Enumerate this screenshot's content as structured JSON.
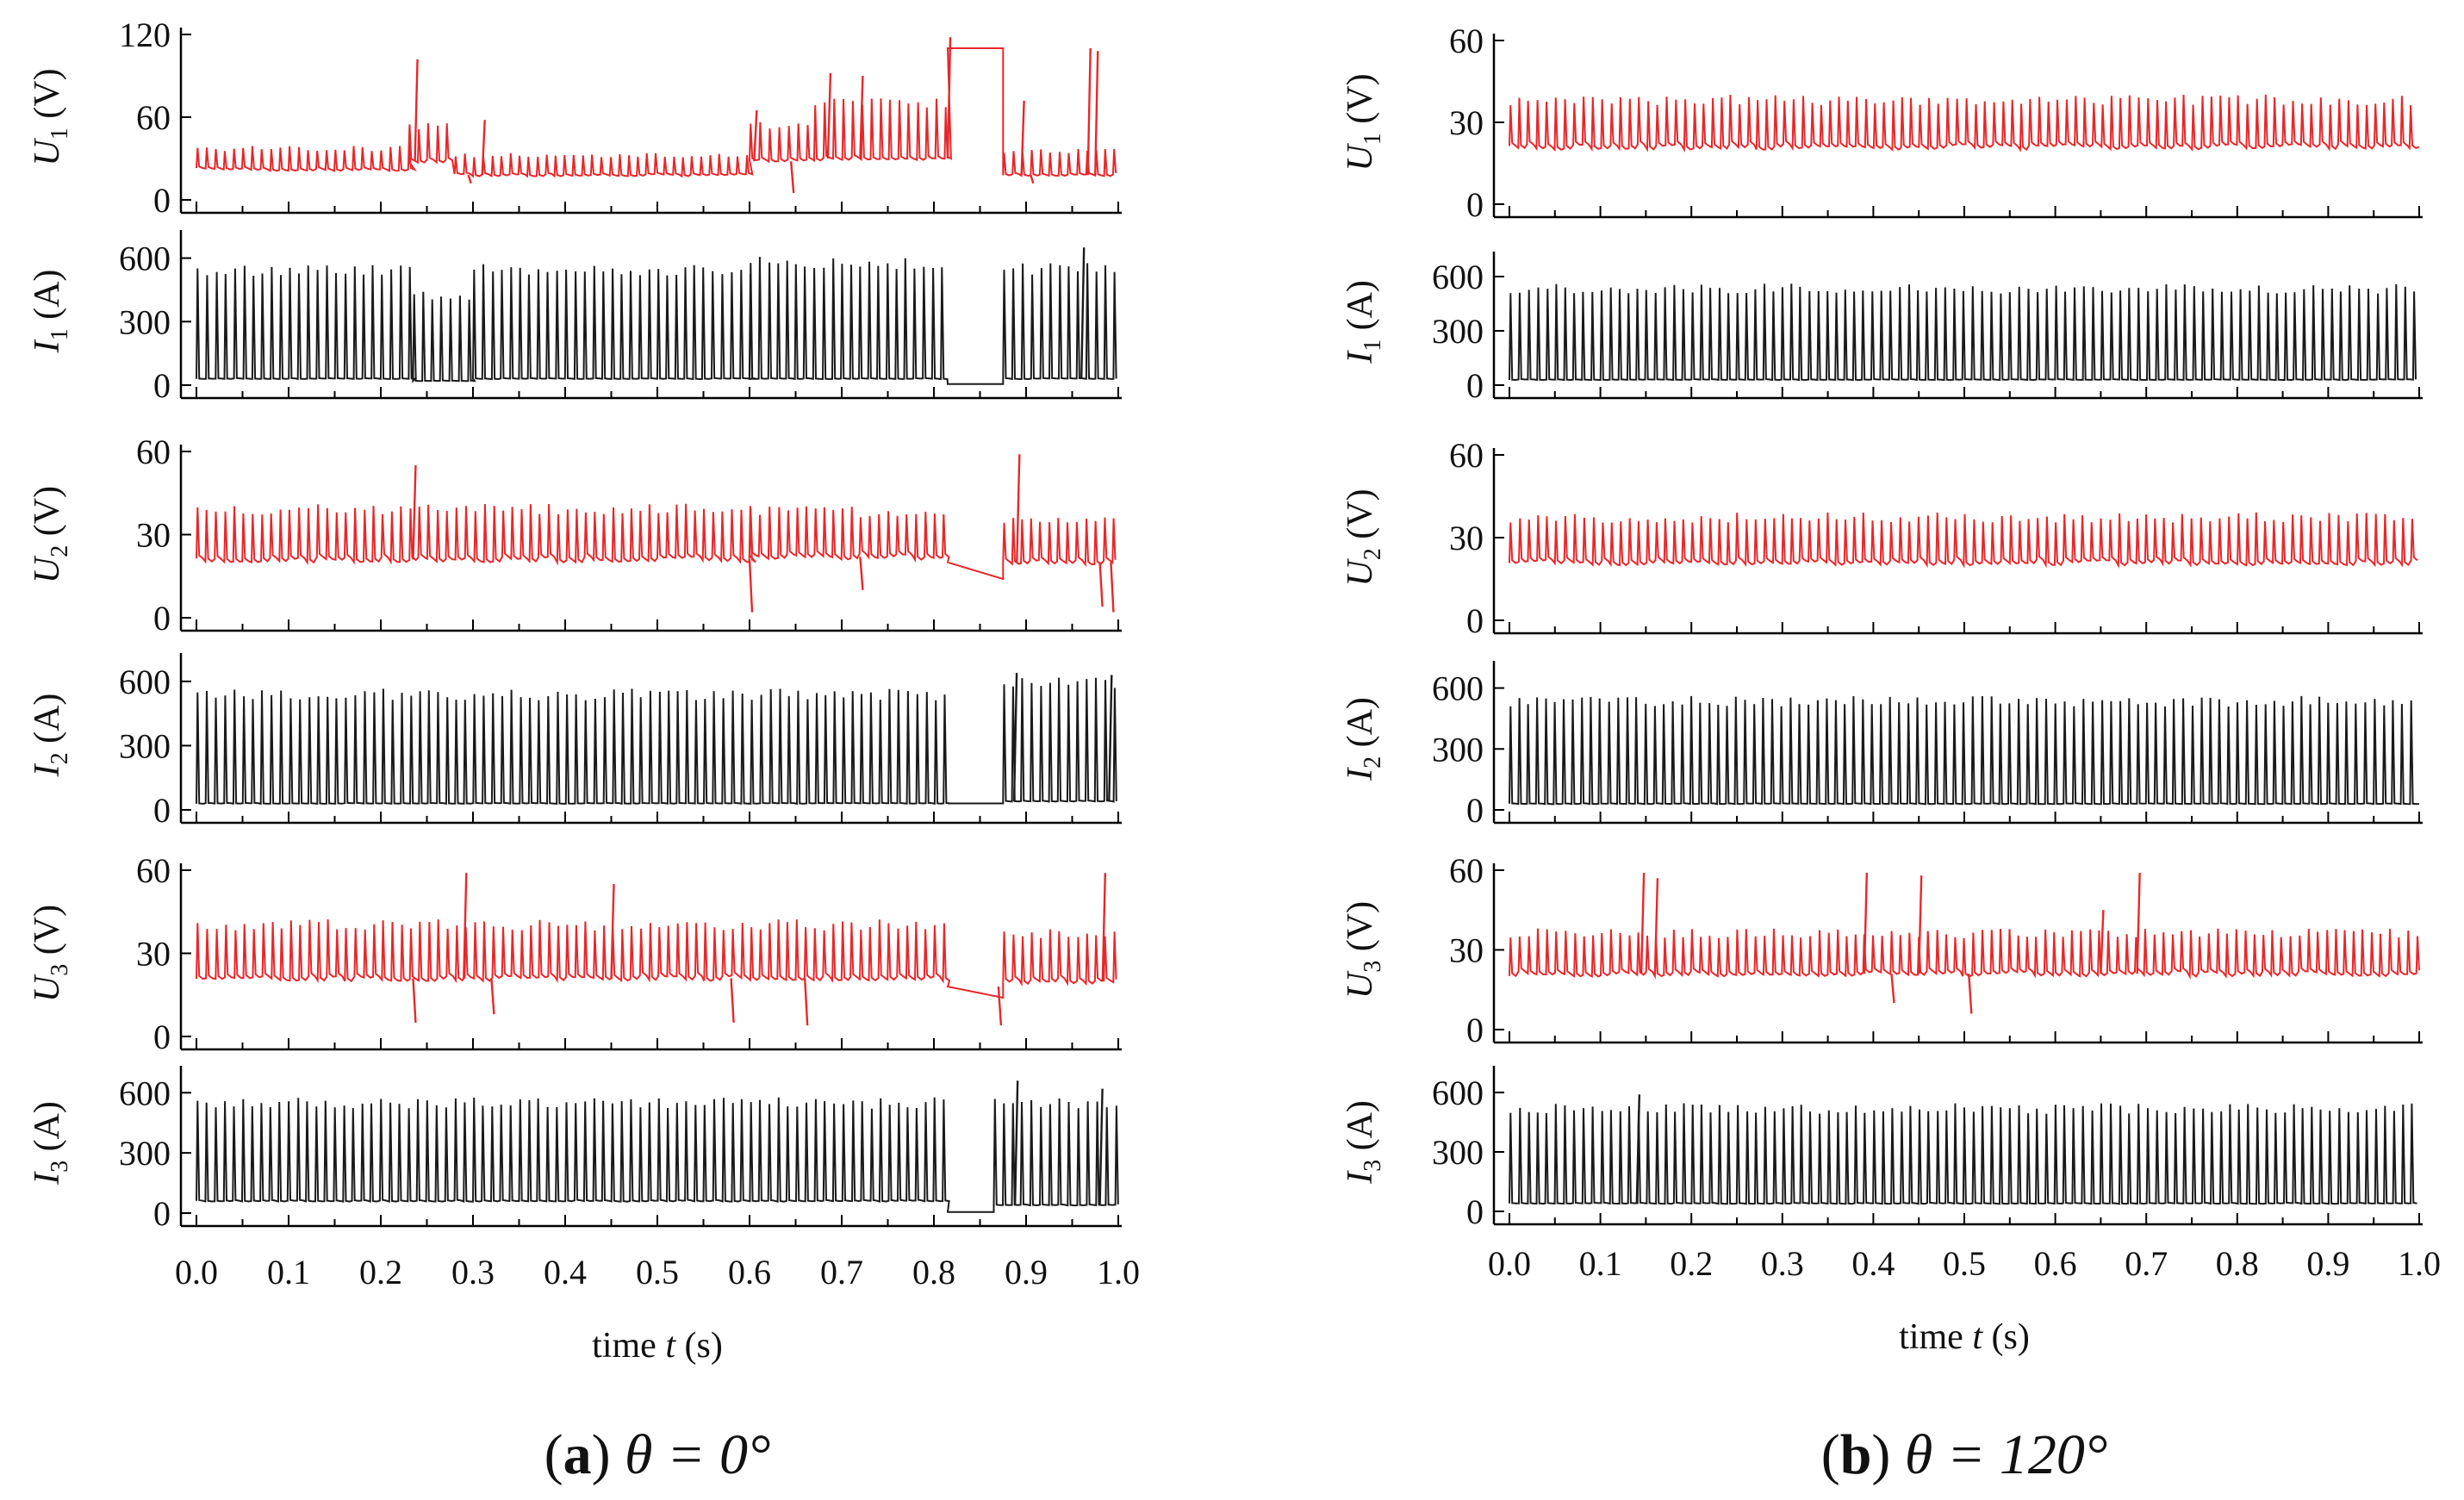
{
  "colors": {
    "voltage": "#e8272b",
    "current": "#1a1a1a",
    "axis": "#000000",
    "text": "#111111"
  },
  "chart_data": [
    {
      "panel": "a",
      "caption": {
        "letter": "a",
        "text": "θ = 0°"
      },
      "type": "line",
      "xlabel": "time t (s)",
      "xlim": [
        0.0,
        1.0
      ],
      "xticks": [
        "0.0",
        "0.1",
        "0.2",
        "0.3",
        "0.4",
        "0.5",
        "0.6",
        "0.7",
        "0.8",
        "0.9",
        "1.0"
      ],
      "series": [
        {
          "name": "U1",
          "label": "U",
          "sub": "1",
          "unit": " (V)",
          "kind": "voltage",
          "ylim": [
            0,
            120
          ],
          "yticks": [
            0,
            60,
            120
          ],
          "base": 22,
          "peak": 38,
          "freq": 90,
          "segments": [
            {
              "t0": 0.0,
              "t1": 0.23,
              "base": 22,
              "peak": 38
            },
            {
              "t0": 0.23,
              "t1": 0.28,
              "base": 28,
              "peak": 55
            },
            {
              "t0": 0.28,
              "t1": 0.6,
              "base": 18,
              "peak": 33
            },
            {
              "t0": 0.6,
              "t1": 0.67,
              "base": 28,
              "peak": 55
            },
            {
              "t0": 0.67,
              "t1": 0.815,
              "base": 30,
              "peak": 72
            },
            {
              "t0": 0.815,
              "t1": 0.875,
              "base": 110,
              "peak": 110,
              "flat": true
            },
            {
              "t0": 0.875,
              "t1": 1.0,
              "base": 18,
              "peak": 36
            }
          ],
          "spikes": [
            {
              "t": 0.237,
              "v": 102
            },
            {
              "t": 0.295,
              "v": 12
            },
            {
              "t": 0.31,
              "v": 58
            },
            {
              "t": 0.605,
              "v": 65
            },
            {
              "t": 0.645,
              "v": 5
            },
            {
              "t": 0.685,
              "v": 92
            },
            {
              "t": 0.72,
              "v": 90
            },
            {
              "t": 0.815,
              "v": 118
            },
            {
              "t": 0.895,
              "v": 72
            },
            {
              "t": 0.905,
              "v": 12
            },
            {
              "t": 0.967,
              "v": 110
            },
            {
              "t": 0.975,
              "v": 108
            }
          ]
        },
        {
          "name": "I1",
          "label": "I",
          "sub": "1",
          "unit": " (A)",
          "kind": "current",
          "ylim": [
            0,
            700
          ],
          "yticks": [
            0,
            300,
            600
          ],
          "segments": [
            {
              "t0": 0.0,
              "t1": 0.235,
              "base": 30,
              "peak": 555
            },
            {
              "t0": 0.235,
              "t1": 0.3,
              "base": 20,
              "peak": 430
            },
            {
              "t0": 0.3,
              "t1": 0.6,
              "base": 30,
              "peak": 555
            },
            {
              "t0": 0.6,
              "t1": 0.815,
              "base": 30,
              "peak": 590
            },
            {
              "t0": 0.815,
              "t1": 0.875,
              "base": 5,
              "peak": 5,
              "flat": true
            },
            {
              "t0": 0.875,
              "t1": 1.0,
              "base": 30,
              "peak": 560
            }
          ],
          "spikes": [
            {
              "t": 0.96,
              "v": 650
            }
          ]
        },
        {
          "name": "U2",
          "label": "U",
          "sub": "2",
          "unit": " (V)",
          "kind": "voltage",
          "ylim": [
            0,
            60
          ],
          "yticks": [
            0,
            30,
            60
          ],
          "segments": [
            {
              "t0": 0.0,
              "t1": 0.6,
              "base": 21,
              "peak": 40
            },
            {
              "t0": 0.6,
              "t1": 0.815,
              "base": 22,
              "peak": 39
            },
            {
              "t0": 0.815,
              "t1": 0.875,
              "base": 20,
              "peak": 20,
              "flat": true,
              "flatEnd": 14
            },
            {
              "t0": 0.875,
              "t1": 1.0,
              "base": 20,
              "peak": 36
            }
          ],
          "spikes": [
            {
              "t": 0.235,
              "v": 55
            },
            {
              "t": 0.6,
              "v": 2
            },
            {
              "t": 0.72,
              "v": 10
            },
            {
              "t": 0.89,
              "v": 59
            },
            {
              "t": 0.98,
              "v": 4
            },
            {
              "t": 0.992,
              "v": 2
            }
          ]
        },
        {
          "name": "I2",
          "label": "I",
          "sub": "2",
          "unit": " (A)",
          "kind": "current",
          "ylim": [
            0,
            700
          ],
          "yticks": [
            0,
            300,
            600
          ],
          "segments": [
            {
              "t0": 0.0,
              "t1": 0.815,
              "base": 30,
              "peak": 550
            },
            {
              "t0": 0.815,
              "t1": 0.875,
              "base": 30,
              "peak": 30,
              "flat": true
            },
            {
              "t0": 0.875,
              "t1": 1.0,
              "base": 40,
              "peak": 600
            }
          ],
          "spikes": [
            {
              "t": 0.887,
              "v": 640
            },
            {
              "t": 0.99,
              "v": 630
            }
          ]
        },
        {
          "name": "U3",
          "label": "U",
          "sub": "3",
          "unit": " (V)",
          "kind": "voltage",
          "ylim": [
            0,
            60
          ],
          "yticks": [
            0,
            30,
            60
          ],
          "segments": [
            {
              "t0": 0.0,
              "t1": 0.815,
              "base": 21,
              "peak": 41
            },
            {
              "t0": 0.815,
              "t1": 0.875,
              "base": 18,
              "peak": 18,
              "flat": true,
              "flatEnd": 14
            },
            {
              "t0": 0.875,
              "t1": 1.0,
              "base": 20,
              "peak": 38
            }
          ],
          "spikes": [
            {
              "t": 0.29,
              "v": 59
            },
            {
              "t": 0.45,
              "v": 55
            },
            {
              "t": 0.235,
              "v": 5
            },
            {
              "t": 0.32,
              "v": 8
            },
            {
              "t": 0.58,
              "v": 5
            },
            {
              "t": 0.66,
              "v": 4
            },
            {
              "t": 0.87,
              "v": 4
            },
            {
              "t": 0.983,
              "v": 59
            }
          ]
        },
        {
          "name": "I3",
          "label": "I",
          "sub": "3",
          "unit": " (A)",
          "kind": "current",
          "ylim": [
            0,
            700
          ],
          "yticks": [
            0,
            300,
            600
          ],
          "segments": [
            {
              "t0": 0.0,
              "t1": 0.815,
              "base": 60,
              "peak": 560
            },
            {
              "t0": 0.815,
              "t1": 0.865,
              "base": 5,
              "peak": 5,
              "flat": true
            },
            {
              "t0": 0.865,
              "t1": 1.0,
              "base": 40,
              "peak": 560
            }
          ],
          "spikes": [
            {
              "t": 0.888,
              "v": 660
            },
            {
              "t": 0.98,
              "v": 620
            }
          ]
        }
      ]
    },
    {
      "panel": "b",
      "caption": {
        "letter": "b",
        "text": "θ = 120°"
      },
      "type": "line",
      "xlabel": "time t (s)",
      "xlim": [
        0.0,
        1.0
      ],
      "xticks": [
        "0.0",
        "0.1",
        "0.2",
        "0.3",
        "0.4",
        "0.5",
        "0.6",
        "0.7",
        "0.8",
        "0.9",
        "1.0"
      ],
      "series": [
        {
          "name": "U1",
          "label": "U",
          "sub": "1",
          "unit": " (V)",
          "kind": "voltage",
          "ylim": [
            0,
            60
          ],
          "yticks": [
            0,
            30,
            60
          ],
          "segments": [
            {
              "t0": 0.0,
              "t1": 1.0,
              "base": 21,
              "peak": 39
            }
          ],
          "spikes": []
        },
        {
          "name": "I1",
          "label": "I",
          "sub": "1",
          "unit": " (A)",
          "kind": "current",
          "ylim": [
            0,
            700
          ],
          "yticks": [
            0,
            300,
            600
          ],
          "segments": [
            {
              "t0": 0.0,
              "t1": 1.0,
              "base": 30,
              "peak": 545
            }
          ],
          "spikes": []
        },
        {
          "name": "U2",
          "label": "U",
          "sub": "2",
          "unit": " (V)",
          "kind": "voltage",
          "ylim": [
            0,
            60
          ],
          "yticks": [
            0,
            30,
            60
          ],
          "segments": [
            {
              "t0": 0.0,
              "t1": 1.0,
              "base": 21,
              "peak": 38
            }
          ],
          "spikes": []
        },
        {
          "name": "I2",
          "label": "I",
          "sub": "2",
          "unit": " (A)",
          "kind": "current",
          "ylim": [
            0,
            700
          ],
          "yticks": [
            0,
            300,
            600
          ],
          "segments": [
            {
              "t0": 0.0,
              "t1": 1.0,
              "base": 30,
              "peak": 545
            }
          ],
          "spikes": []
        },
        {
          "name": "U3",
          "label": "U",
          "sub": "3",
          "unit": " (V)",
          "kind": "voltage",
          "ylim": [
            0,
            60
          ],
          "yticks": [
            0,
            30,
            60
          ],
          "segments": [
            {
              "t0": 0.0,
              "t1": 1.0,
              "base": 21,
              "peak": 37
            }
          ],
          "spikes": [
            {
              "t": 0.145,
              "v": 59
            },
            {
              "t": 0.16,
              "v": 57
            },
            {
              "t": 0.39,
              "v": 59
            },
            {
              "t": 0.45,
              "v": 58
            },
            {
              "t": 0.65,
              "v": 45
            },
            {
              "t": 0.69,
              "v": 59
            },
            {
              "t": 0.42,
              "v": 10
            },
            {
              "t": 0.505,
              "v": 6
            }
          ]
        },
        {
          "name": "I3",
          "label": "I",
          "sub": "3",
          "unit": " (A)",
          "kind": "current",
          "ylim": [
            0,
            700
          ],
          "yticks": [
            0,
            300,
            600
          ],
          "segments": [
            {
              "t0": 0.0,
              "t1": 1.0,
              "base": 40,
              "peak": 530
            }
          ],
          "spikes": [
            {
              "t": 0.14,
              "v": 590
            }
          ]
        }
      ]
    }
  ]
}
